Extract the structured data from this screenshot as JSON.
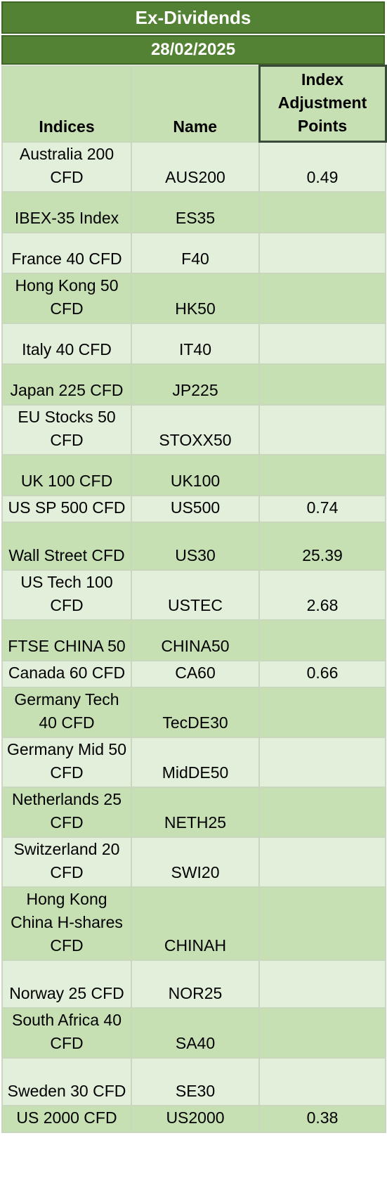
{
  "header": {
    "title": "Ex-Dividends",
    "date": "28/02/2025"
  },
  "columns": {
    "indices": "Indices",
    "name": "Name",
    "points": "Index Adjustment Points"
  },
  "rows": [
    {
      "index": "Australia 200 CFD",
      "name": "AUS200",
      "points": "0.49"
    },
    {
      "index": "IBEX-35 Index",
      "name": "ES35",
      "points": ""
    },
    {
      "index": "France 40 CFD",
      "name": "F40",
      "points": ""
    },
    {
      "index": "Hong Kong 50 CFD",
      "name": "HK50",
      "points": ""
    },
    {
      "index": "Italy 40 CFD",
      "name": "IT40",
      "points": ""
    },
    {
      "index": "Japan 225 CFD",
      "name": "JP225",
      "points": ""
    },
    {
      "index": "EU Stocks 50 CFD",
      "name": "STOXX50",
      "points": ""
    },
    {
      "index": "UK 100 CFD",
      "name": "UK100",
      "points": ""
    },
    {
      "index": "US SP 500 CFD",
      "name": "US500",
      "points": "0.74"
    },
    {
      "index": "Wall Street CFD",
      "name": "US30",
      "points": "25.39"
    },
    {
      "index": "US Tech 100 CFD",
      "name": "USTEC",
      "points": "2.68"
    },
    {
      "index": "FTSE CHINA 50",
      "name": "CHINA50",
      "points": ""
    },
    {
      "index": "Canada 60 CFD",
      "name": "CA60",
      "points": "0.66"
    },
    {
      "index": "Germany Tech 40 CFD",
      "name": "TecDE30",
      "points": ""
    },
    {
      "index": "Germany Mid 50 CFD",
      "name": "MidDE50",
      "points": ""
    },
    {
      "index": "Netherlands 25 CFD",
      "name": "NETH25",
      "points": ""
    },
    {
      "index": "Switzerland 20 CFD",
      "name": "SWI20",
      "points": ""
    },
    {
      "index": "Hong Kong China H-shares CFD",
      "name": "CHINAH",
      "points": ""
    },
    {
      "index": "Norway 25 CFD",
      "name": "NOR25",
      "points": ""
    },
    {
      "index": "South Africa 40 CFD",
      "name": "SA40",
      "points": ""
    },
    {
      "index": "Sweden 30 CFD",
      "name": "SE30",
      "points": ""
    },
    {
      "index": "US 2000 CFD",
      "name": "US2000",
      "points": "0.38"
    }
  ]
}
